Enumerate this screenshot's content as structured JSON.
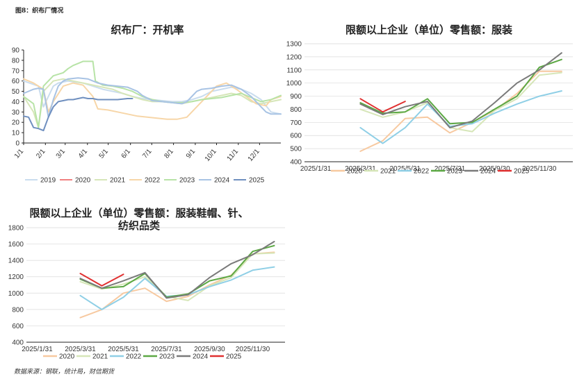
{
  "page": {
    "figure_label": "图8：织布厂情况",
    "source": "数据来源：钢联，统计局，财信期货"
  },
  "chart_data": [
    {
      "id": "loom",
      "type": "line",
      "title": "织布厂：开机率",
      "xlabel": "",
      "ylabel": "",
      "ylim": [
        0,
        90
      ],
      "yticks": [
        0,
        10,
        20,
        30,
        40,
        50,
        60,
        70,
        80,
        90
      ],
      "xlim": [
        0,
        52
      ],
      "xticks": [
        {
          "label": "1/1",
          "x": 0
        },
        {
          "label": "2/1",
          "x": 4.4
        },
        {
          "label": "3/1",
          "x": 8.4
        },
        {
          "label": "4/1",
          "x": 12.9
        },
        {
          "label": "5/1",
          "x": 17.1
        },
        {
          "label": "6/1",
          "x": 21.6
        },
        {
          "label": "7/1",
          "x": 25.9
        },
        {
          "label": "8/1",
          "x": 30.3
        },
        {
          "label": "9/1",
          "x": 34.7
        },
        {
          "label": "10/1",
          "x": 39
        },
        {
          "label": "11/1",
          "x": 43.4
        },
        {
          "label": "12/1",
          "x": 47.7
        }
      ],
      "grid": false,
      "legend_position": "bottom",
      "series": [
        {
          "name": "2019",
          "color": "#c9dcee",
          "points": [
            [
              0,
              60
            ],
            [
              3,
              55
            ],
            [
              4,
              35
            ],
            [
              5,
              45
            ],
            [
              6,
              55
            ],
            [
              7,
              58
            ],
            [
              9,
              60
            ],
            [
              12,
              58
            ],
            [
              14,
              55
            ],
            [
              16,
              52
            ],
            [
              18,
              50
            ],
            [
              20,
              48
            ],
            [
              22,
              45
            ],
            [
              24,
              43
            ],
            [
              26,
              42
            ],
            [
              28,
              41
            ],
            [
              30,
              40
            ],
            [
              32,
              40
            ],
            [
              34,
              42
            ],
            [
              36,
              45
            ],
            [
              38,
              50
            ],
            [
              40,
              52
            ],
            [
              42,
              54
            ],
            [
              44,
              52
            ],
            [
              46,
              48
            ],
            [
              48,
              42
            ],
            [
              50,
              30
            ],
            [
              52,
              28
            ]
          ]
        },
        {
          "name": "2020",
          "color": "#f08080",
          "points": []
        },
        {
          "name": "2021",
          "color": "#d6e6b8",
          "points": [
            [
              0,
              45
            ],
            [
              2,
              30
            ],
            [
              3,
              15
            ],
            [
              4,
              50
            ],
            [
              6,
              60
            ],
            [
              8,
              62
            ],
            [
              10,
              60
            ],
            [
              12,
              58
            ],
            [
              14,
              56
            ],
            [
              16,
              54
            ],
            [
              18,
              52
            ],
            [
              20,
              48
            ],
            [
              22,
              45
            ],
            [
              24,
              42
            ],
            [
              26,
              40
            ],
            [
              28,
              40
            ],
            [
              30,
              39
            ],
            [
              32,
              38
            ],
            [
              34,
              40
            ],
            [
              36,
              42
            ],
            [
              38,
              44
            ],
            [
              40,
              46
            ],
            [
              42,
              48
            ],
            [
              44,
              46
            ],
            [
              46,
              40
            ],
            [
              48,
              38
            ],
            [
              50,
              40
            ],
            [
              52,
              42
            ]
          ]
        },
        {
          "name": "2022",
          "color": "#f7d6a8",
          "points": [
            [
              0,
              62
            ],
            [
              2,
              58
            ],
            [
              4,
              52
            ],
            [
              5,
              30
            ],
            [
              6,
              40
            ],
            [
              8,
              55
            ],
            [
              10,
              58
            ],
            [
              12,
              56
            ],
            [
              14,
              45
            ],
            [
              15,
              33
            ],
            [
              17,
              32
            ],
            [
              19,
              30
            ],
            [
              21,
              28
            ],
            [
              23,
              26
            ],
            [
              25,
              25
            ],
            [
              27,
              24
            ],
            [
              29,
              23
            ],
            [
              31,
              23
            ],
            [
              33,
              25
            ],
            [
              35,
              35
            ],
            [
              37,
              45
            ],
            [
              39,
              55
            ],
            [
              41,
              58
            ],
            [
              43,
              52
            ],
            [
              45,
              45
            ],
            [
              47,
              38
            ],
            [
              49,
              36
            ],
            [
              50,
              42
            ],
            [
              52,
              45
            ]
          ]
        },
        {
          "name": "2023",
          "color": "#b7e3a6",
          "points": [
            [
              0,
              45
            ],
            [
              2,
              38
            ],
            [
              3,
              15
            ],
            [
              4,
              55
            ],
            [
              6,
              65
            ],
            [
              8,
              68
            ],
            [
              9,
              72
            ],
            [
              10,
              75
            ],
            [
              11,
              77
            ],
            [
              12,
              79
            ],
            [
              13,
              79
            ],
            [
              14,
              79
            ],
            [
              14.5,
              60
            ],
            [
              16,
              56
            ],
            [
              18,
              55
            ],
            [
              20,
              53
            ],
            [
              22,
              50
            ],
            [
              24,
              45
            ],
            [
              26,
              42
            ],
            [
              28,
              40
            ],
            [
              30,
              39
            ],
            [
              32,
              39
            ],
            [
              34,
              40
            ],
            [
              36,
              42
            ],
            [
              38,
              43
            ],
            [
              40,
              44
            ],
            [
              42,
              46
            ],
            [
              44,
              48
            ],
            [
              46,
              44
            ],
            [
              48,
              40
            ],
            [
              50,
              42
            ],
            [
              52,
              46
            ]
          ]
        },
        {
          "name": "2024",
          "color": "#a8c3e4",
          "points": [
            [
              0,
              48
            ],
            [
              2,
              52
            ],
            [
              3,
              53
            ],
            [
              4,
              52
            ],
            [
              5,
              25
            ],
            [
              6,
              42
            ],
            [
              7,
              55
            ],
            [
              8,
              60
            ],
            [
              9,
              62
            ],
            [
              11,
              63
            ],
            [
              13,
              62
            ],
            [
              15,
              58
            ],
            [
              17,
              56
            ],
            [
              19,
              55
            ],
            [
              21,
              54
            ],
            [
              23,
              50
            ],
            [
              24,
              46
            ],
            [
              26,
              41
            ],
            [
              28,
              40
            ],
            [
              30,
              39
            ],
            [
              32,
              38
            ],
            [
              33,
              40
            ],
            [
              34,
              45
            ],
            [
              35,
              50
            ],
            [
              36,
              52
            ],
            [
              38,
              53
            ],
            [
              40,
              55
            ],
            [
              42,
              56
            ],
            [
              44,
              52
            ],
            [
              46,
              45
            ],
            [
              47,
              40
            ],
            [
              48,
              35
            ],
            [
              49,
              30
            ],
            [
              50,
              28
            ],
            [
              52,
              28
            ]
          ]
        },
        {
          "name": "2025",
          "color": "#6f8fbf",
          "points": [
            [
              0,
              26
            ],
            [
              1,
              25
            ],
            [
              2,
              15
            ],
            [
              3,
              14
            ],
            [
              4,
              12
            ],
            [
              5,
              25
            ],
            [
              6,
              35
            ],
            [
              7,
              40
            ],
            [
              8,
              41
            ],
            [
              9,
              42
            ],
            [
              10,
              42
            ],
            [
              11,
              43
            ],
            [
              12,
              44
            ],
            [
              13,
              43
            ],
            [
              14,
              43
            ],
            [
              15,
              42
            ],
            [
              17,
              42
            ],
            [
              19,
              42
            ],
            [
              21,
              43
            ],
            [
              22,
              43
            ]
          ]
        }
      ]
    },
    {
      "id": "apparel",
      "type": "line",
      "title": "限额以上企业（单位）零售额：服装",
      "xlabel": "",
      "ylabel": "",
      "ylim": [
        400,
        1300
      ],
      "yticks": [
        400,
        500,
        600,
        700,
        800,
        900,
        1000,
        1100,
        1200,
        1300
      ],
      "xticks": [
        "2025/1/31",
        "2025/3/31",
        "2025/5/31",
        "2025/7/31",
        "2025/9/30",
        "2025/11/30"
      ],
      "months": [
        "2025/1/31",
        "2025/2/28",
        "2025/3/31",
        "2025/4/30",
        "2025/5/31",
        "2025/6/30",
        "2025/7/31",
        "2025/8/31",
        "2025/9/30",
        "2025/10/31",
        "2025/11/30",
        "2025/12/31"
      ],
      "grid": true,
      "legend_position": "bottom",
      "series": [
        {
          "name": "2020",
          "color": "#f7c9a0",
          "start": 2,
          "values": [
            480,
            560,
            730,
            740,
            620,
            700,
            790,
            920,
            1090,
            1090
          ]
        },
        {
          "name": "2021",
          "color": "#d6e6b8",
          "start": 2,
          "values": [
            800,
            740,
            780,
            850,
            660,
            630,
            790,
            880,
            1060,
            1080
          ]
        },
        {
          "name": "2022",
          "color": "#8fcfe6",
          "start": 2,
          "values": [
            660,
            540,
            660,
            840,
            670,
            690,
            770,
            840,
            900,
            940
          ]
        },
        {
          "name": "2023",
          "color": "#5ca844",
          "start": 2,
          "values": [
            850,
            770,
            780,
            880,
            690,
            700,
            800,
            900,
            1120,
            1180
          ]
        },
        {
          "name": "2024",
          "color": "#7a7a7a",
          "start": 2,
          "values": [
            840,
            760,
            820,
            860,
            660,
            710,
            850,
            1000,
            1100,
            1230
          ]
        },
        {
          "name": "2025",
          "color": "#e03030",
          "start": 2,
          "values": [
            880,
            780,
            860
          ]
        }
      ]
    },
    {
      "id": "shoes",
      "type": "line",
      "title": "限额以上企业（单位）零售额：服装鞋帽、针、纺织品类",
      "title_lines": [
        "限额以上企业（单位）零售额：服装鞋帽、针、",
        "纺织品类"
      ],
      "xlabel": "",
      "ylabel": "",
      "ylim": [
        400,
        1800
      ],
      "yticks": [
        400,
        600,
        800,
        1000,
        1200,
        1400,
        1600,
        1800
      ],
      "xticks": [
        "2025/1/31",
        "2025/3/31",
        "2025/5/31",
        "2025/7/31",
        "2025/9/30",
        "2025/11/30"
      ],
      "months": [
        "2025/1/31",
        "2025/2/28",
        "2025/3/31",
        "2025/4/30",
        "2025/5/31",
        "2025/6/30",
        "2025/7/31",
        "2025/8/31",
        "2025/9/30",
        "2025/10/31",
        "2025/11/30",
        "2025/12/31"
      ],
      "grid": true,
      "legend_position": "bottom",
      "series": [
        {
          "name": "2020",
          "color": "#f7c9a0",
          "start": 2,
          "values": [
            700,
            800,
            1000,
            1060,
            900,
            960,
            1100,
            1220,
            1480,
            1500
          ]
        },
        {
          "name": "2021",
          "color": "#d6e6b8",
          "start": 2,
          "values": [
            1140,
            1050,
            1110,
            1200,
            960,
            910,
            1090,
            1190,
            1480,
            1490
          ]
        },
        {
          "name": "2022",
          "color": "#8fcfe6",
          "start": 2,
          "values": [
            970,
            800,
            950,
            1180,
            960,
            980,
            1080,
            1160,
            1280,
            1320
          ]
        },
        {
          "name": "2023",
          "color": "#5ca844",
          "start": 2,
          "values": [
            1170,
            1060,
            1080,
            1240,
            950,
            990,
            1150,
            1210,
            1510,
            1580
          ]
        },
        {
          "name": "2024",
          "color": "#7a7a7a",
          "start": 2,
          "values": [
            1180,
            1060,
            1150,
            1250,
            940,
            980,
            1190,
            1360,
            1470,
            1630
          ]
        },
        {
          "name": "2025",
          "color": "#e03030",
          "start": 2,
          "values": [
            1240,
            1090,
            1230
          ]
        }
      ]
    }
  ]
}
